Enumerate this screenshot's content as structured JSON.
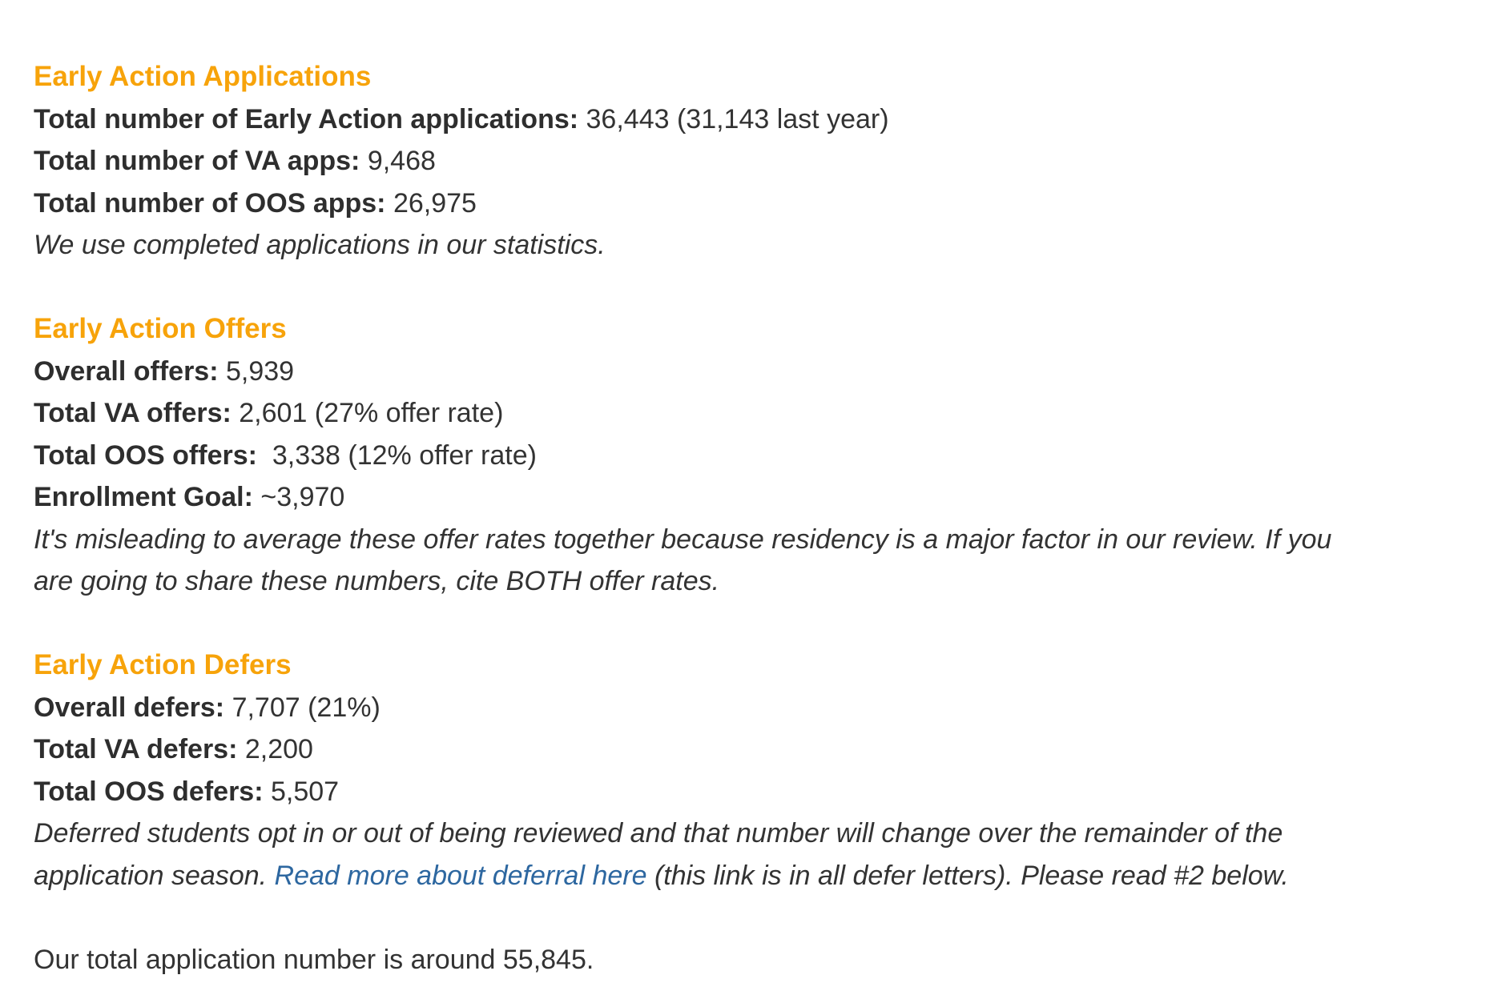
{
  "applications": {
    "heading": "Early Action Applications",
    "rows": [
      {
        "label": "Total number of Early Action applications:",
        "value": " 36,443 (31,143 last year)"
      },
      {
        "label": "Total number of VA apps:",
        "value": " 9,468"
      },
      {
        "label": "Total number of OOS apps:",
        "value": " 26,975"
      }
    ],
    "note": "We use completed applications in our statistics."
  },
  "offers": {
    "heading": "Early Action Offers",
    "rows": [
      {
        "label": "Overall offers:",
        "value": " 5,939"
      },
      {
        "label": "Total VA offers:",
        "value": " 2,601 (27% offer rate)"
      },
      {
        "label": "Total OOS offers:",
        "value": "  3,338 (12% offer rate)"
      },
      {
        "label": "Enrollment Goal:",
        "value": " ~3,970"
      }
    ],
    "note_line1": "It's misleading to average these offer rates together because residency is a major factor in our review. If you",
    "note_line2": "are going to share these numbers, cite BOTH offer rates."
  },
  "defers": {
    "heading": "Early Action Defers",
    "rows": [
      {
        "label": "Overall defers:",
        "value": " 7,707 (21%)"
      },
      {
        "label": "Total VA defers:",
        "value": " 2,200"
      },
      {
        "label": "Total OOS defers:",
        "value": " 5,507"
      }
    ],
    "note_line1": "Deferred students opt in or out of being reviewed and that number will change over the remainder of the",
    "note_line2_before": "application season. ",
    "link": "Read more about deferral here",
    "note_line2_after": " (this link is in all defer letters). Please read #2 below."
  },
  "total": "Our total application number is around 55,845.",
  "colors": {
    "heading": "#f7a30a",
    "text": "#333333",
    "link": "#2d67a0"
  }
}
